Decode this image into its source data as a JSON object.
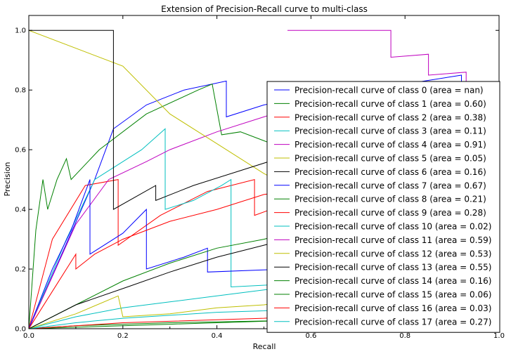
{
  "chart_data": {
    "type": "line",
    "title": "Extension of Precision-Recall curve to multi-class",
    "xlabel": "Recall",
    "ylabel": "Precision",
    "xlim": [
      0.0,
      1.0
    ],
    "ylim": [
      0.0,
      1.05
    ],
    "xticks": [
      "0.0",
      "0.2",
      "0.4",
      "0.6",
      "0.8",
      "1.0"
    ],
    "yticks": [
      "0.0",
      "0.2",
      "0.4",
      "0.6",
      "0.8",
      "1.0"
    ],
    "legend_position": "lower-right",
    "series": [
      {
        "name": "Precision-recall curve of class 0 (area = nan)",
        "color": "#0000ff",
        "points": [
          [
            0,
            0
          ],
          [
            0.14,
            0.5
          ],
          [
            0.18,
            0.67
          ],
          [
            0.25,
            0.75
          ],
          [
            0.33,
            0.8
          ],
          [
            0.42,
            0.83
          ],
          [
            0.42,
            0.71
          ],
          [
            0.5,
            0.75
          ],
          [
            0.6,
            0.78
          ],
          [
            0.7,
            0.8
          ],
          [
            0.8,
            0.82
          ],
          [
            0.92,
            0.85
          ],
          [
            0.92,
            0.82
          ]
        ]
      },
      {
        "name": "Precision-recall curve of class 1 (area = 0.60)",
        "color": "#008000",
        "points": [
          [
            0,
            0
          ],
          [
            0.015,
            0.33
          ],
          [
            0.03,
            0.5
          ],
          [
            0.04,
            0.4
          ],
          [
            0.06,
            0.5
          ],
          [
            0.08,
            0.57
          ],
          [
            0.09,
            0.5
          ],
          [
            0.15,
            0.6
          ],
          [
            0.25,
            0.72
          ],
          [
            0.36,
            0.8
          ],
          [
            0.39,
            0.82
          ],
          [
            0.41,
            0.65
          ],
          [
            0.45,
            0.66
          ],
          [
            0.5,
            0.63
          ],
          [
            0.55,
            0.6
          ]
        ]
      },
      {
        "name": "Precision-recall curve of class 2 (area = 0.38)",
        "color": "#ff0000",
        "points": [
          [
            0,
            0
          ],
          [
            0.05,
            0.3
          ],
          [
            0.12,
            0.48
          ],
          [
            0.19,
            0.5
          ],
          [
            0.19,
            0.28
          ],
          [
            0.28,
            0.38
          ],
          [
            0.38,
            0.46
          ],
          [
            0.48,
            0.5
          ],
          [
            0.48,
            0.38
          ],
          [
            0.55,
            0.42
          ]
        ]
      },
      {
        "name": "Precision-recall curve of class 3 (area = 0.11)",
        "color": "#00bfbf",
        "points": [
          [
            0,
            0
          ],
          [
            0.08,
            0.3
          ],
          [
            0.14,
            0.5
          ],
          [
            0.24,
            0.6
          ],
          [
            0.29,
            0.67
          ],
          [
            0.29,
            0.4
          ],
          [
            0.35,
            0.43
          ],
          [
            0.41,
            0.48
          ],
          [
            0.43,
            0.5
          ],
          [
            0.43,
            0.14
          ],
          [
            0.55,
            0.15
          ]
        ]
      },
      {
        "name": "Precision-recall curve of class 4 (area = 0.91)",
        "color": "#bf00bf",
        "points": [
          [
            0,
            0
          ],
          [
            0.1,
            0.35
          ],
          [
            0.17,
            0.5
          ],
          [
            0.25,
            0.56
          ],
          [
            0.3,
            0.6
          ],
          [
            0.4,
            0.66
          ],
          [
            0.5,
            0.71
          ],
          [
            0.6,
            0.76
          ],
          [
            0.7,
            0.8
          ],
          [
            0.8,
            0.82
          ]
        ]
      },
      {
        "name": "Precision-recall curve of class 5 (area = 0.05)",
        "color": "#bfbf00",
        "points": [
          [
            0,
            1.0
          ],
          [
            0.1,
            0.94
          ],
          [
            0.2,
            0.88
          ],
          [
            0.3,
            0.72
          ],
          [
            0.4,
            0.62
          ],
          [
            0.5,
            0.52
          ],
          [
            0.55,
            0.48
          ]
        ]
      },
      {
        "name": "Precision-recall curve of class 6 (area = 0.16)",
        "color": "#000000",
        "points": [
          [
            0,
            1.0
          ],
          [
            0.18,
            1.0
          ],
          [
            0.18,
            0.4
          ],
          [
            0.27,
            0.48
          ],
          [
            0.27,
            0.43
          ],
          [
            0.35,
            0.48
          ],
          [
            0.45,
            0.53
          ],
          [
            0.55,
            0.58
          ]
        ]
      },
      {
        "name": "Precision-recall curve of class 7 (area = 0.67)",
        "color": "#0000ff",
        "points": [
          [
            0,
            0
          ],
          [
            0.05,
            0.2
          ],
          [
            0.09,
            0.33
          ],
          [
            0.13,
            0.5
          ],
          [
            0.13,
            0.25
          ],
          [
            0.2,
            0.32
          ],
          [
            0.25,
            0.4
          ],
          [
            0.25,
            0.2
          ],
          [
            0.33,
            0.24
          ],
          [
            0.38,
            0.27
          ],
          [
            0.38,
            0.19
          ],
          [
            0.55,
            0.2
          ]
        ]
      },
      {
        "name": "Precision-recall curve of class 8 (area = 0.21)",
        "color": "#008000",
        "points": [
          [
            0,
            0
          ],
          [
            0.1,
            0.08
          ],
          [
            0.2,
            0.16
          ],
          [
            0.3,
            0.22
          ],
          [
            0.4,
            0.27
          ],
          [
            0.5,
            0.3
          ],
          [
            0.55,
            0.32
          ]
        ]
      },
      {
        "name": "Precision-recall curve of class 9 (area = 0.28)",
        "color": "#ff0000",
        "points": [
          [
            0,
            0
          ],
          [
            0.06,
            0.15
          ],
          [
            0.1,
            0.25
          ],
          [
            0.1,
            0.2
          ],
          [
            0.14,
            0.25
          ],
          [
            0.2,
            0.3
          ],
          [
            0.3,
            0.36
          ],
          [
            0.4,
            0.4
          ],
          [
            0.5,
            0.45
          ],
          [
            0.55,
            0.46
          ]
        ]
      },
      {
        "name": "Precision-recall curve of class 10 (area = 0.02)",
        "color": "#00bfbf",
        "points": [
          [
            0,
            0
          ],
          [
            0.1,
            0.04
          ],
          [
            0.2,
            0.07
          ],
          [
            0.3,
            0.09
          ],
          [
            0.4,
            0.11
          ],
          [
            0.5,
            0.13
          ],
          [
            0.55,
            0.14
          ]
        ]
      },
      {
        "name": "Precision-recall curve of class 11 (area = 0.59)",
        "color": "#bf00bf",
        "points": [
          [
            0.55,
            1.0
          ],
          [
            0.77,
            1.0
          ],
          [
            0.77,
            0.91
          ],
          [
            0.85,
            0.92
          ],
          [
            0.85,
            0.85
          ],
          [
            0.93,
            0.86
          ],
          [
            0.93,
            0.8
          ]
        ]
      },
      {
        "name": "Precision-recall curve of class 12 (area = 0.53)",
        "color": "#bfbf00",
        "points": [
          [
            0,
            0
          ],
          [
            0.1,
            0.05
          ],
          [
            0.19,
            0.11
          ],
          [
            0.2,
            0.04
          ],
          [
            0.3,
            0.05
          ],
          [
            0.4,
            0.07
          ],
          [
            0.5,
            0.08
          ],
          [
            0.55,
            0.09
          ]
        ]
      },
      {
        "name": "Precision-recall curve of class 13 (area = 0.55)",
        "color": "#000000",
        "points": [
          [
            0,
            0
          ],
          [
            0.1,
            0.08
          ],
          [
            0.21,
            0.14
          ],
          [
            0.3,
            0.19
          ],
          [
            0.4,
            0.24
          ],
          [
            0.5,
            0.28
          ],
          [
            0.55,
            0.3
          ]
        ]
      },
      {
        "name": "Precision-recall curve of class 14 (area = 0.16)",
        "color": "#008000",
        "points": [
          [
            0,
            0
          ],
          [
            0.1,
            0.005
          ],
          [
            0.2,
            0.01
          ],
          [
            0.3,
            0.015
          ],
          [
            0.4,
            0.02
          ],
          [
            0.5,
            0.025
          ],
          [
            0.55,
            0.027
          ]
        ]
      },
      {
        "name": "Precision-recall curve of class 15 (area = 0.06)",
        "color": "#008000",
        "points": [
          [
            0,
            0
          ],
          [
            0.1,
            0.01
          ],
          [
            0.2,
            0.015
          ],
          [
            0.3,
            0.02
          ],
          [
            0.4,
            0.023
          ],
          [
            0.5,
            0.026
          ],
          [
            0.55,
            0.028
          ]
        ]
      },
      {
        "name": "Precision-recall curve of class 16 (area = 0.03)",
        "color": "#ff0000",
        "points": [
          [
            0,
            0
          ],
          [
            0.1,
            0.01
          ],
          [
            0.2,
            0.02
          ],
          [
            0.3,
            0.025
          ],
          [
            0.4,
            0.03
          ],
          [
            0.5,
            0.035
          ],
          [
            0.55,
            0.04
          ]
        ]
      },
      {
        "name": "Precision-recall curve of class 17 (area = 0.27)",
        "color": "#00bfbf",
        "points": [
          [
            0,
            0
          ],
          [
            0.1,
            0.02
          ],
          [
            0.2,
            0.035
          ],
          [
            0.3,
            0.045
          ],
          [
            0.4,
            0.055
          ],
          [
            0.5,
            0.06
          ],
          [
            0.55,
            0.065
          ]
        ]
      }
    ]
  }
}
